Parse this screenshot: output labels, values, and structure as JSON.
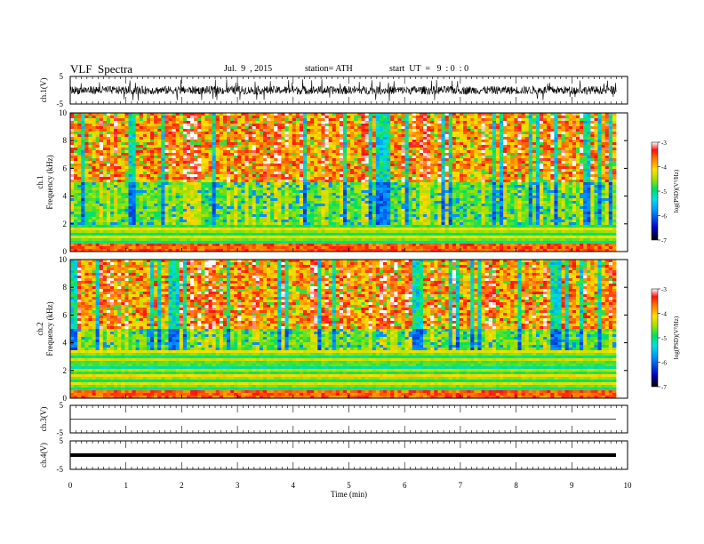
{
  "header": {
    "title": "VLF  Spectra",
    "date": "Jul.  9  , 2015",
    "station": "station= ATH",
    "start": "start  UT  =   9  : 0  : 0"
  },
  "colors": {
    "spec_low": "#000000",
    "spec_mid": "#00e060",
    "spec_high": "#ff2000",
    "waveform": "#000000"
  },
  "chart_data": [
    {
      "type": "line",
      "panel": "ch1-waveform",
      "ylabel": "ch.1(V)",
      "ylim": [
        -5,
        5
      ],
      "yticks": [
        "5",
        "-5"
      ],
      "xlim": [
        0,
        10
      ],
      "description_values": {
        "baseline": 0,
        "typical_amplitude": 1.5,
        "spike_amplitude": 4
      }
    },
    {
      "type": "heatmap",
      "panel": "ch1-spectrogram",
      "ylabel_channel": "ch.1",
      "ylabel": "Frequency  (kHz)",
      "ylim": [
        0,
        10
      ],
      "yticks": [
        "0",
        "2",
        "4",
        "6",
        "8",
        "10"
      ],
      "xlim": [
        0,
        9.8
      ],
      "colorbar_label": "log(PSD)(V²/Hz)",
      "colorbar_range": [
        -7,
        -3
      ],
      "colorbar_ticks": [
        "-3",
        "-4",
        "-5",
        "-6",
        "-7"
      ],
      "low_band_kHz": [
        0,
        2
      ],
      "mid_band_kHz": [
        2,
        5
      ],
      "high_band_kHz": [
        5,
        10
      ]
    },
    {
      "type": "heatmap",
      "panel": "ch2-spectrogram",
      "ylabel_channel": "ch.2",
      "ylabel": "Frequency  (kHz)",
      "ylim": [
        0,
        10
      ],
      "yticks": [
        "0",
        "2",
        "4",
        "6",
        "8",
        "10"
      ],
      "xlim": [
        0,
        9.8
      ],
      "colorbar_label": "log(PSD)(V²/Hz)",
      "colorbar_range": [
        -7,
        -3
      ],
      "colorbar_ticks": [
        "-3",
        "-4",
        "-5",
        "-6",
        "-7"
      ],
      "low_band_kHz": [
        0,
        3.5
      ],
      "mid_band_kHz": [
        3.5,
        5
      ],
      "high_band_kHz": [
        5,
        10
      ]
    },
    {
      "type": "line",
      "panel": "ch3-waveform",
      "ylabel": "ch.3(V)",
      "ylim": [
        -5,
        5
      ],
      "yticks": [
        "5",
        "-5"
      ],
      "xlim": [
        0,
        9.8
      ],
      "constant_value": 0
    },
    {
      "type": "line",
      "panel": "ch4-waveform",
      "ylabel": "ch.4(V)",
      "ylim": [
        -5,
        5
      ],
      "yticks": [
        "5",
        "-5"
      ],
      "xlim": [
        0,
        9.8
      ],
      "constant_value": 0
    },
    {
      "type": "axis",
      "panel": "time-axis",
      "xlabel": "Time  (min)",
      "xlim": [
        0,
        10
      ],
      "xticks": [
        "0",
        "1",
        "2",
        "3",
        "4",
        "5",
        "6",
        "7",
        "8",
        "9",
        "10"
      ]
    }
  ]
}
